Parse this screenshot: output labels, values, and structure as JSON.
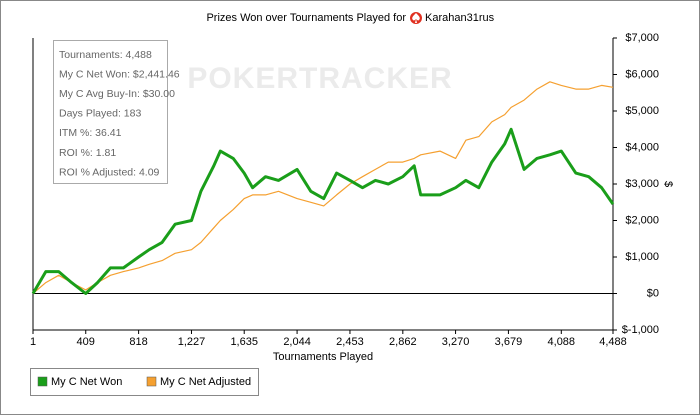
{
  "chart_data": {
    "type": "line",
    "title": "Prizes Won over Tournaments Played for",
    "player": "Karahan31rus",
    "watermark": "POKERTRACKER",
    "x_label": "Tournaments Played",
    "y_label": "$",
    "stats": [
      "Tournaments: 4,488",
      "My C Net Won: $2,441.46",
      "My C Avg Buy-In: $30.00",
      "Days Played: 183",
      "ITM %: 36.41",
      "ROI %: 1.81",
      "ROI % Adjusted: 4.09"
    ],
    "x": [
      1,
      100,
      200,
      300,
      409,
      500,
      600,
      700,
      818,
      900,
      1000,
      1100,
      1227,
      1300,
      1400,
      1450,
      1550,
      1635,
      1700,
      1800,
      1900,
      2044,
      2150,
      2250,
      2350,
      2453,
      2550,
      2650,
      2750,
      2862,
      2950,
      3000,
      3150,
      3270,
      3350,
      3450,
      3550,
      3650,
      3700,
      3800,
      3900,
      4000,
      4088,
      4200,
      4300,
      4400,
      4488
    ],
    "series": [
      {
        "name": "My C Net Won",
        "color": "#1a9e1a",
        "values": [
          0,
          600,
          600,
          300,
          0,
          300,
          700,
          700,
          1000,
          1200,
          1400,
          1900,
          2000,
          2800,
          3500,
          3900,
          3700,
          3300,
          2900,
          3200,
          3100,
          3400,
          2800,
          2600,
          3300,
          3100,
          2900,
          3100,
          3000,
          3200,
          3500,
          2700,
          2700,
          2900,
          3100,
          2900,
          3600,
          4100,
          4500,
          3400,
          3700,
          3800,
          3900,
          3300,
          3200,
          2900,
          2450
        ]
      },
      {
        "name": "My C Net Adjusted",
        "color": "#f5a030",
        "values": [
          0,
          300,
          500,
          300,
          100,
          300,
          500,
          600,
          700,
          800,
          900,
          1100,
          1200,
          1400,
          1800,
          2000,
          2300,
          2600,
          2700,
          2700,
          2800,
          2600,
          2500,
          2400,
          2700,
          3000,
          3200,
          3400,
          3600,
          3600,
          3700,
          3800,
          3900,
          3700,
          4200,
          4300,
          4700,
          4900,
          5100,
          5300,
          5600,
          5800,
          5700,
          5600,
          5600,
          5700,
          5650
        ]
      }
    ],
    "xlim": [
      1,
      4488
    ],
    "xticks": [
      1,
      409,
      818,
      {
        "value": 1227,
        "label": "1,227"
      },
      {
        "value": 1635,
        "label": "1,635"
      },
      {
        "value": 2044,
        "label": "2,044"
      },
      {
        "value": 2453,
        "label": "2,453"
      },
      {
        "value": 2862,
        "label": "2,862"
      },
      {
        "value": 3270,
        "label": "3,270"
      },
      {
        "value": 3679,
        "label": "3,679"
      },
      {
        "value": 4088,
        "label": "4,088"
      },
      {
        "value": 4488,
        "label": "4,488"
      }
    ],
    "ylim": [
      -1000,
      7000
    ],
    "yticks": [
      {
        "value": -1000,
        "label": "$-1,000"
      },
      {
        "value": 0,
        "label": "$0"
      },
      {
        "value": 1000,
        "label": "$1,000"
      },
      {
        "value": 2000,
        "label": "$2,000"
      },
      {
        "value": 3000,
        "label": "$3,000"
      },
      {
        "value": 4000,
        "label": "$4,000"
      },
      {
        "value": 5000,
        "label": "$5,000"
      },
      {
        "value": 6000,
        "label": "$6,000"
      },
      {
        "value": 7000,
        "label": "$7,000"
      }
    ],
    "grid": false
  }
}
